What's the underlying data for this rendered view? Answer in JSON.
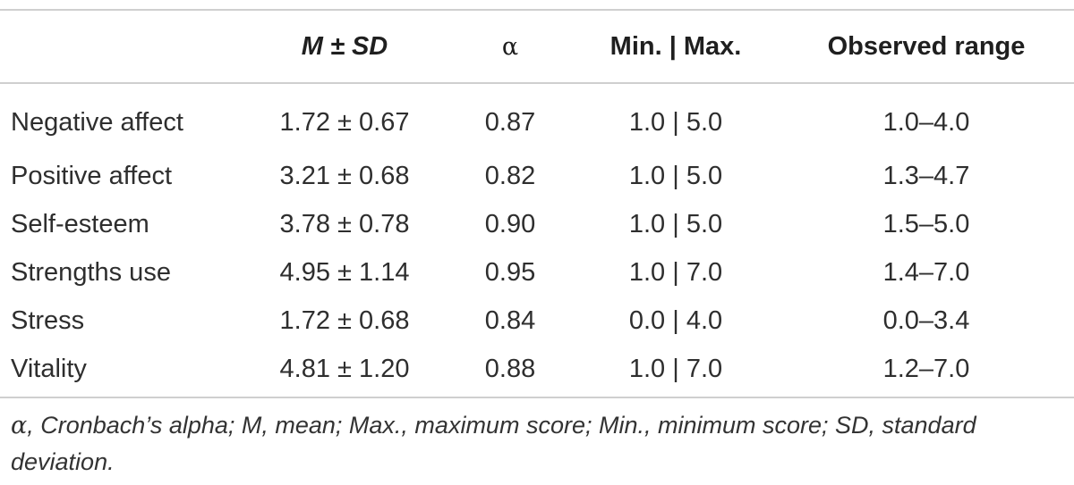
{
  "table": {
    "headers": {
      "variable": "",
      "mean_sd": "M ± SD",
      "alpha": "α",
      "min_max": "Min. | Max.",
      "observed_range": "Observed range"
    },
    "rows": [
      {
        "variable": "Negative affect",
        "mean_sd": "1.72 ± 0.67",
        "alpha": "0.87",
        "min_max": "1.0 | 5.0",
        "observed_range": "1.0–4.0"
      },
      {
        "variable": "Positive affect",
        "mean_sd": "3.21 ± 0.68",
        "alpha": "0.82",
        "min_max": "1.0 | 5.0",
        "observed_range": "1.3–4.7"
      },
      {
        "variable": "Self-esteem",
        "mean_sd": "3.78 ± 0.78",
        "alpha": "0.90",
        "min_max": "1.0 | 5.0",
        "observed_range": "1.5–5.0"
      },
      {
        "variable": "Strengths use",
        "mean_sd": "4.95 ± 1.14",
        "alpha": "0.95",
        "min_max": "1.0 | 7.0",
        "observed_range": "1.4–7.0"
      },
      {
        "variable": "Stress",
        "mean_sd": "1.72 ± 0.68",
        "alpha": "0.84",
        "min_max": "0.0 | 4.0",
        "observed_range": "0.0–3.4"
      },
      {
        "variable": "Vitality",
        "mean_sd": "4.81 ± 1.20",
        "alpha": "0.88",
        "min_max": "1.0 | 7.0",
        "observed_range": "1.2–7.0"
      }
    ]
  },
  "footnote": {
    "alpha_symbol": "α",
    "text": ", Cronbach’s alpha; M, mean; Max., maximum score; Min., minimum score; SD, standard deviation."
  },
  "colors": {
    "rule": "#cfcfcf",
    "text": "#2b2b2b"
  }
}
